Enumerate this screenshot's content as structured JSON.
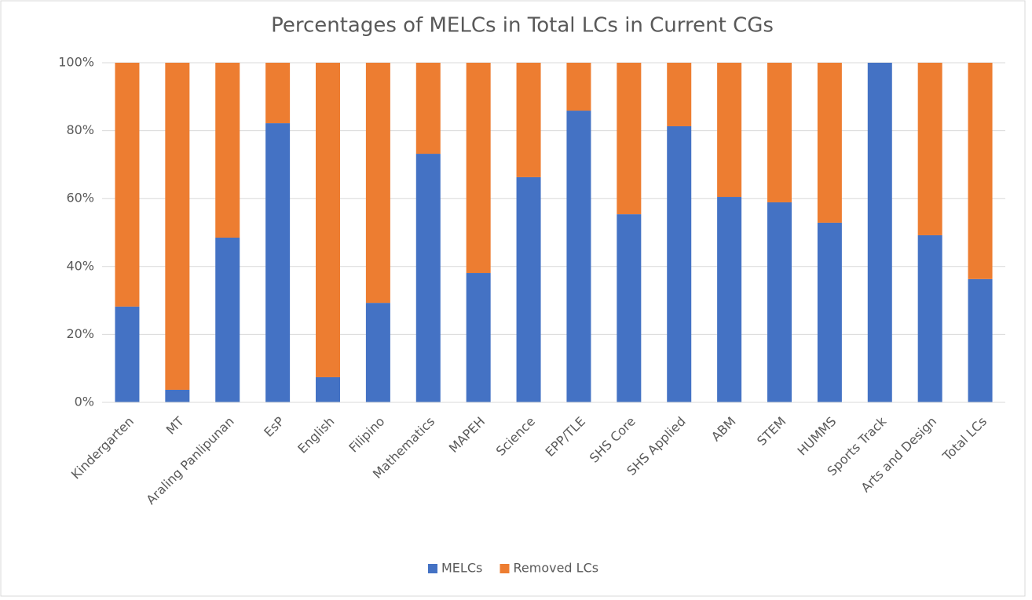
{
  "chart_data": {
    "type": "stacked_bar",
    "title": "Percentages of MELCs in Total LCs in Current CGs",
    "categories": [
      "Kindergarten",
      "MT",
      "Araling Panlipunan",
      "EsP",
      "English",
      "Filipino",
      "Mathematics",
      "MAPEH",
      "Science",
      "EPP/TLE",
      "SHS Core",
      "SHS Applied",
      "ABM",
      "STEM",
      "HUMMS",
      "Sports Track",
      "Arts and Design",
      "Total LCs"
    ],
    "series": [
      {
        "name": "MELCs",
        "color": "#4472c4",
        "values": [
          28.2,
          3.7,
          48.5,
          82.2,
          7.4,
          29.3,
          73.2,
          38.1,
          66.3,
          85.9,
          55.4,
          81.3,
          60.5,
          58.9,
          52.9,
          100,
          49.2,
          36.3
        ]
      },
      {
        "name": "Removed LCs",
        "color": "#ed7d31",
        "values": [
          71.8,
          96.3,
          51.5,
          17.8,
          92.6,
          70.7,
          26.8,
          61.9,
          33.7,
          14.1,
          44.6,
          18.7,
          39.5,
          41.1,
          47.1,
          0,
          50.8,
          63.7
        ]
      }
    ],
    "ylim": [
      0,
      100
    ],
    "yticks": [
      {
        "value": 0,
        "label": "0%"
      },
      {
        "value": 20,
        "label": "20%"
      },
      {
        "value": 40,
        "label": "40%"
      },
      {
        "value": 60,
        "label": "60%"
      },
      {
        "value": 80,
        "label": "80%"
      },
      {
        "value": 100,
        "label": "100%"
      }
    ],
    "grid": true,
    "legend": "bottom"
  }
}
